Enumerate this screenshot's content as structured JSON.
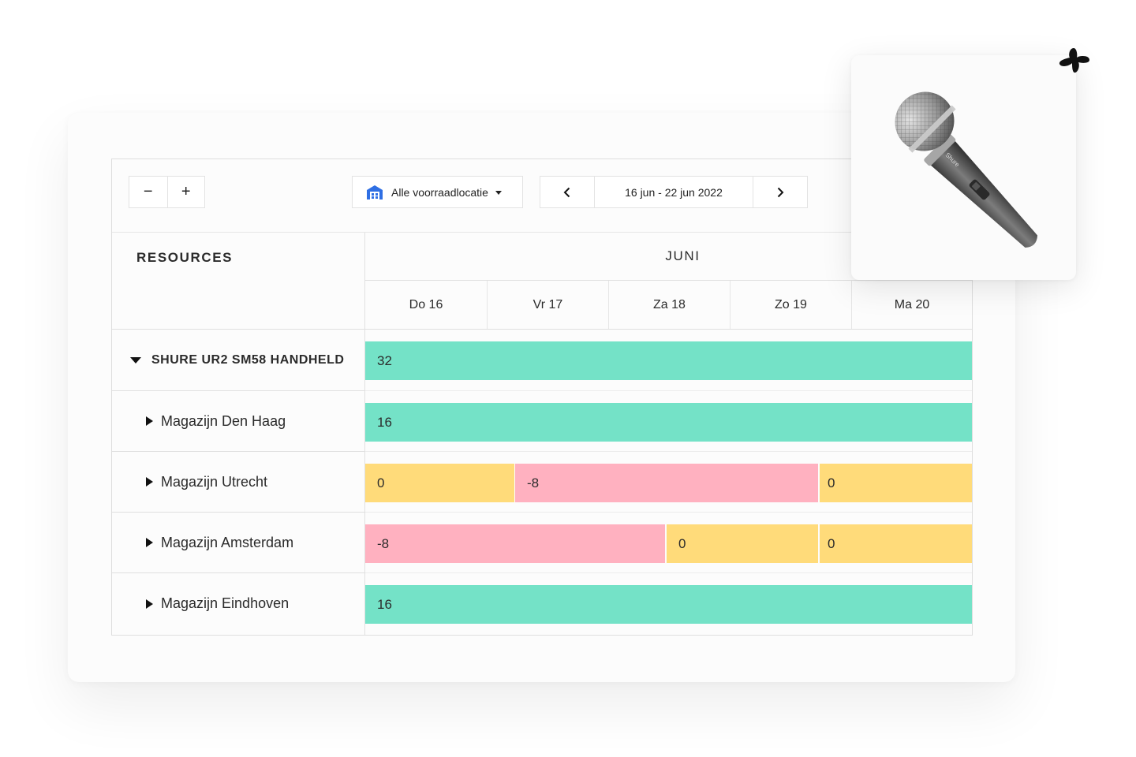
{
  "toolbar": {
    "zoom_out_label": "−",
    "zoom_in_label": "+",
    "location_label": "Alle voorraadlocatie",
    "date_range": "16 jun - 22 jun 2022",
    "prev_icon": "chevron-left-icon",
    "next_icon": "chevron-right-icon",
    "location_icon": "warehouse-icon"
  },
  "grid": {
    "resources_header": "RESOURCES",
    "month": "JUNI",
    "days": [
      "Do 16",
      "Vr 17",
      "Za 18",
      "Zo 19",
      "Ma 20"
    ]
  },
  "resources": {
    "parent": {
      "label": "SHURE UR2 SM58 HANDHELD",
      "expanded": true
    },
    "children": [
      {
        "label": "Magazijn Den Haag"
      },
      {
        "label": "Magazijn Utrecht"
      },
      {
        "label": "Magazijn Amsterdam"
      },
      {
        "label": "Magazijn Eindhoven"
      }
    ]
  },
  "availability": {
    "parent": [
      {
        "value": "32",
        "status": "available"
      }
    ],
    "den_haag": [
      {
        "value": "16",
        "status": "available"
      }
    ],
    "utrecht": [
      {
        "value": "0",
        "status": "empty"
      },
      {
        "value": "-8",
        "status": "shortage"
      },
      {
        "value": "0",
        "status": "empty"
      }
    ],
    "amsterdam": [
      {
        "value": "-8",
        "status": "shortage"
      },
      {
        "value": "0",
        "status": "empty"
      },
      {
        "value": "0",
        "status": "empty"
      }
    ],
    "eindhoven": [
      {
        "value": "16",
        "status": "available"
      }
    ]
  },
  "colors": {
    "available": "#74e2c7",
    "empty": "#ffdb7a",
    "shortage": "#ffb1c0",
    "accent": "#2f6fe4"
  },
  "product": {
    "icon": "microphone-icon",
    "brand": "Shure"
  }
}
